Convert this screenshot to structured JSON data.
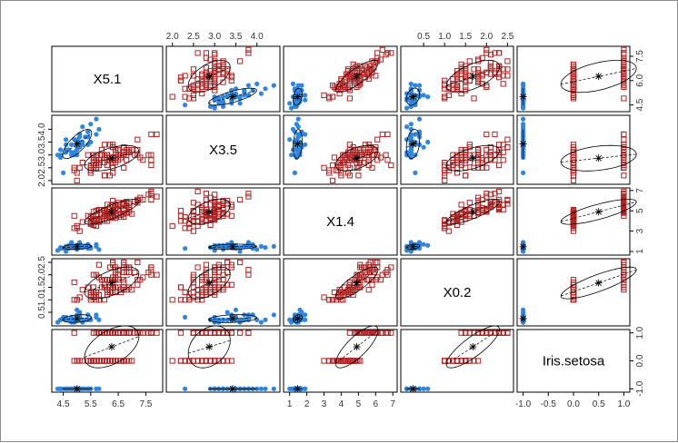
{
  "chart_data": {
    "type": "scatter",
    "variables": [
      "X5.1",
      "X3.5",
      "X1.4",
      "X0.2",
      "Iris.setosa"
    ],
    "ranges": [
      [
        4.3,
        7.9
      ],
      [
        2.0,
        4.4
      ],
      [
        1.0,
        6.9
      ],
      [
        0.1,
        2.5
      ],
      [
        -1,
        1
      ]
    ],
    "ticks": [
      [
        "4.5",
        "5.5",
        "6.5",
        "7.5"
      ],
      [
        "2.0",
        "2.5",
        "3.0",
        "3.5",
        "4.0"
      ],
      [
        "1",
        "2",
        "3",
        "4",
        "5",
        "6",
        "7"
      ],
      [
        "0.5",
        "1.0",
        "1.5",
        "2.0",
        "2.5"
      ],
      [
        "-1.0",
        "-0.5",
        "0.0",
        "0.5",
        "1.0"
      ]
    ],
    "tick_values": [
      [
        4.5,
        5.5,
        6.5,
        7.5
      ],
      [
        2.0,
        2.5,
        3.0,
        3.5,
        4.0
      ],
      [
        1,
        2,
        3,
        4,
        5,
        6,
        7
      ],
      [
        0.5,
        1.0,
        1.5,
        2.0,
        2.5
      ],
      [
        -1.0,
        -0.5,
        0.0,
        0.5,
        1.0
      ]
    ],
    "left_tick_values": [
      [
        4.5,
        6.0,
        7.5
      ],
      [
        2.0,
        2.5,
        3.0,
        3.5,
        4.0
      ],
      [
        1,
        3,
        5,
        7
      ],
      [
        0.5,
        1.0,
        1.5,
        2.0,
        2.5
      ],
      [
        -1.0,
        0.0,
        1.0
      ]
    ],
    "left_ticks": [
      [
        "4.5",
        "6.0",
        "7.5"
      ],
      [
        "2.0",
        "2.5",
        "3.0",
        "3.5",
        "4.0"
      ],
      [
        "1",
        "3",
        "5",
        "7"
      ],
      [
        "0.5",
        "1.0",
        "1.5",
        "2.0",
        "2.5"
      ],
      [
        "-1.0",
        "0.0",
        "1.0"
      ]
    ],
    "colors": {
      "setosa": "#2e86de",
      "other": "#b22222"
    },
    "markers": {
      "setosa": "filled-circle",
      "other": "open-square"
    },
    "series": [
      {
        "group": "setosa",
        "points": [
          [
            4.9,
            3.0,
            1.4,
            0.2,
            -1
          ],
          [
            4.7,
            3.2,
            1.3,
            0.2,
            -1
          ],
          [
            4.6,
            3.1,
            1.5,
            0.2,
            -1
          ],
          [
            5.0,
            3.6,
            1.4,
            0.2,
            -1
          ],
          [
            5.4,
            3.9,
            1.7,
            0.4,
            -1
          ],
          [
            4.6,
            3.4,
            1.4,
            0.3,
            -1
          ],
          [
            5.0,
            3.4,
            1.5,
            0.2,
            -1
          ],
          [
            4.4,
            2.9,
            1.4,
            0.2,
            -1
          ],
          [
            4.9,
            3.1,
            1.5,
            0.1,
            -1
          ],
          [
            5.4,
            3.7,
            1.5,
            0.2,
            -1
          ],
          [
            4.8,
            3.4,
            1.6,
            0.2,
            -1
          ],
          [
            4.8,
            3.0,
            1.4,
            0.1,
            -1
          ],
          [
            4.3,
            3.0,
            1.1,
            0.1,
            -1
          ],
          [
            5.8,
            4.0,
            1.2,
            0.2,
            -1
          ],
          [
            5.7,
            4.4,
            1.5,
            0.4,
            -1
          ],
          [
            5.4,
            3.9,
            1.3,
            0.4,
            -1
          ],
          [
            5.1,
            3.5,
            1.4,
            0.3,
            -1
          ],
          [
            5.7,
            3.8,
            1.7,
            0.3,
            -1
          ],
          [
            5.1,
            3.8,
            1.5,
            0.3,
            -1
          ],
          [
            5.4,
            3.4,
            1.7,
            0.2,
            -1
          ],
          [
            5.1,
            3.7,
            1.5,
            0.4,
            -1
          ],
          [
            4.6,
            3.6,
            1.0,
            0.2,
            -1
          ],
          [
            5.1,
            3.3,
            1.7,
            0.5,
            -1
          ],
          [
            4.8,
            3.4,
            1.9,
            0.2,
            -1
          ],
          [
            5.0,
            3.0,
            1.6,
            0.2,
            -1
          ],
          [
            5.0,
            3.4,
            1.6,
            0.4,
            -1
          ],
          [
            5.2,
            3.5,
            1.5,
            0.2,
            -1
          ],
          [
            5.2,
            3.4,
            1.4,
            0.2,
            -1
          ],
          [
            4.7,
            3.2,
            1.6,
            0.2,
            -1
          ],
          [
            4.8,
            3.1,
            1.6,
            0.2,
            -1
          ],
          [
            5.4,
            3.4,
            1.5,
            0.4,
            -1
          ],
          [
            5.2,
            4.1,
            1.5,
            0.1,
            -1
          ],
          [
            5.5,
            4.2,
            1.4,
            0.2,
            -1
          ],
          [
            4.9,
            3.1,
            1.5,
            0.2,
            -1
          ],
          [
            5.0,
            3.2,
            1.2,
            0.2,
            -1
          ],
          [
            5.5,
            3.5,
            1.3,
            0.2,
            -1
          ],
          [
            4.9,
            3.6,
            1.4,
            0.1,
            -1
          ],
          [
            4.4,
            3.0,
            1.3,
            0.2,
            -1
          ],
          [
            5.1,
            3.4,
            1.5,
            0.2,
            -1
          ],
          [
            5.0,
            3.5,
            1.3,
            0.3,
            -1
          ],
          [
            4.5,
            2.3,
            1.3,
            0.3,
            -1
          ],
          [
            4.4,
            3.2,
            1.3,
            0.2,
            -1
          ],
          [
            5.0,
            3.5,
            1.6,
            0.6,
            -1
          ],
          [
            5.1,
            3.8,
            1.9,
            0.4,
            -1
          ],
          [
            4.8,
            3.0,
            1.4,
            0.3,
            -1
          ],
          [
            5.1,
            3.8,
            1.6,
            0.2,
            -1
          ],
          [
            4.6,
            3.2,
            1.4,
            0.2,
            -1
          ],
          [
            5.3,
            3.7,
            1.5,
            0.2,
            -1
          ],
          [
            5.0,
            3.3,
            1.4,
            0.2,
            -1
          ]
        ]
      },
      {
        "group": "other",
        "points": [
          [
            7.0,
            3.2,
            4.7,
            1.4,
            0
          ],
          [
            6.4,
            3.2,
            4.5,
            1.5,
            0
          ],
          [
            6.9,
            3.1,
            4.9,
            1.5,
            0
          ],
          [
            5.5,
            2.3,
            4.0,
            1.3,
            0
          ],
          [
            6.5,
            2.8,
            4.6,
            1.5,
            0
          ],
          [
            5.7,
            2.8,
            4.5,
            1.3,
            0
          ],
          [
            6.3,
            3.3,
            4.7,
            1.6,
            0
          ],
          [
            4.9,
            2.4,
            3.3,
            1.0,
            0
          ],
          [
            6.6,
            2.9,
            4.6,
            1.3,
            0
          ],
          [
            5.2,
            2.7,
            3.9,
            1.4,
            0
          ],
          [
            5.0,
            2.0,
            3.5,
            1.0,
            0
          ],
          [
            5.9,
            3.0,
            4.2,
            1.5,
            0
          ],
          [
            6.0,
            2.2,
            4.0,
            1.0,
            0
          ],
          [
            6.1,
            2.9,
            4.7,
            1.4,
            0
          ],
          [
            5.6,
            2.9,
            3.6,
            1.3,
            0
          ],
          [
            6.7,
            3.1,
            4.4,
            1.4,
            0
          ],
          [
            5.6,
            3.0,
            4.5,
            1.5,
            0
          ],
          [
            5.8,
            2.7,
            4.1,
            1.0,
            0
          ],
          [
            6.2,
            2.2,
            4.5,
            1.5,
            0
          ],
          [
            5.6,
            2.5,
            3.9,
            1.1,
            0
          ],
          [
            5.9,
            3.2,
            4.8,
            1.8,
            0
          ],
          [
            6.1,
            2.8,
            4.0,
            1.3,
            0
          ],
          [
            6.3,
            2.5,
            4.9,
            1.5,
            0
          ],
          [
            6.1,
            2.8,
            4.7,
            1.2,
            0
          ],
          [
            6.4,
            2.9,
            4.3,
            1.3,
            0
          ],
          [
            6.6,
            3.0,
            4.4,
            1.4,
            0
          ],
          [
            6.8,
            2.8,
            4.8,
            1.4,
            0
          ],
          [
            6.7,
            3.0,
            5.0,
            1.7,
            0
          ],
          [
            6.0,
            2.9,
            4.5,
            1.5,
            0
          ],
          [
            5.7,
            2.6,
            3.5,
            1.0,
            0
          ],
          [
            5.5,
            2.4,
            3.8,
            1.1,
            0
          ],
          [
            5.5,
            2.4,
            3.7,
            1.0,
            0
          ],
          [
            5.8,
            2.7,
            3.9,
            1.2,
            0
          ],
          [
            6.0,
            2.7,
            5.1,
            1.6,
            0
          ],
          [
            5.4,
            3.0,
            4.5,
            1.5,
            0
          ],
          [
            6.0,
            3.4,
            4.5,
            1.6,
            0
          ],
          [
            6.7,
            3.1,
            4.7,
            1.5,
            0
          ],
          [
            6.3,
            2.3,
            4.4,
            1.3,
            0
          ],
          [
            5.6,
            3.0,
            4.1,
            1.3,
            0
          ],
          [
            5.5,
            2.5,
            4.0,
            1.3,
            0
          ],
          [
            5.5,
            2.6,
            4.4,
            1.2,
            0
          ],
          [
            6.1,
            3.0,
            4.6,
            1.4,
            0
          ],
          [
            5.8,
            2.6,
            4.0,
            1.2,
            0
          ],
          [
            5.0,
            2.3,
            3.3,
            1.0,
            0
          ],
          [
            5.6,
            2.7,
            4.2,
            1.3,
            0
          ],
          [
            5.7,
            3.0,
            4.2,
            1.2,
            0
          ],
          [
            5.7,
            2.9,
            4.2,
            1.3,
            0
          ],
          [
            6.2,
            2.9,
            4.3,
            1.3,
            0
          ],
          [
            5.1,
            2.5,
            3.0,
            1.1,
            0
          ],
          [
            5.7,
            2.8,
            4.1,
            1.3,
            0
          ],
          [
            6.3,
            3.3,
            6.0,
            2.5,
            1
          ],
          [
            5.8,
            2.7,
            5.1,
            1.9,
            1
          ],
          [
            7.1,
            3.0,
            5.9,
            2.1,
            1
          ],
          [
            6.3,
            2.9,
            5.6,
            1.8,
            1
          ],
          [
            6.5,
            3.0,
            5.8,
            2.2,
            1
          ],
          [
            7.6,
            3.0,
            6.6,
            2.1,
            1
          ],
          [
            4.9,
            2.5,
            4.5,
            1.7,
            1
          ],
          [
            7.3,
            2.9,
            6.3,
            1.8,
            1
          ],
          [
            6.7,
            2.5,
            5.8,
            1.8,
            1
          ],
          [
            7.2,
            3.6,
            6.1,
            2.5,
            1
          ],
          [
            6.5,
            3.2,
            5.1,
            2.0,
            1
          ],
          [
            6.4,
            2.7,
            5.3,
            1.9,
            1
          ],
          [
            6.8,
            3.0,
            5.5,
            2.1,
            1
          ],
          [
            5.7,
            2.5,
            5.0,
            2.0,
            1
          ],
          [
            5.8,
            2.8,
            5.1,
            2.4,
            1
          ],
          [
            6.4,
            3.2,
            5.3,
            2.3,
            1
          ],
          [
            6.5,
            3.0,
            5.5,
            1.8,
            1
          ],
          [
            7.7,
            3.8,
            6.7,
            2.2,
            1
          ],
          [
            7.7,
            2.6,
            6.9,
            2.3,
            1
          ],
          [
            6.0,
            2.2,
            5.0,
            1.5,
            1
          ],
          [
            6.9,
            3.2,
            5.7,
            2.3,
            1
          ],
          [
            5.6,
            2.8,
            4.9,
            2.0,
            1
          ],
          [
            7.7,
            2.8,
            6.7,
            2.0,
            1
          ],
          [
            6.3,
            2.7,
            4.9,
            1.8,
            1
          ],
          [
            6.7,
            3.3,
            5.7,
            2.1,
            1
          ],
          [
            7.2,
            3.2,
            6.0,
            1.8,
            1
          ],
          [
            6.2,
            2.8,
            4.8,
            1.8,
            1
          ],
          [
            6.1,
            3.0,
            4.9,
            1.8,
            1
          ],
          [
            6.4,
            2.8,
            5.6,
            2.1,
            1
          ],
          [
            7.2,
            3.0,
            5.8,
            1.6,
            1
          ],
          [
            7.4,
            2.8,
            6.1,
            1.9,
            1
          ],
          [
            7.9,
            3.8,
            6.4,
            2.0,
            1
          ],
          [
            6.4,
            2.8,
            5.6,
            2.2,
            1
          ],
          [
            6.3,
            2.8,
            5.1,
            1.5,
            1
          ],
          [
            6.1,
            2.6,
            5.6,
            1.4,
            1
          ],
          [
            7.7,
            3.0,
            6.1,
            2.3,
            1
          ],
          [
            6.3,
            3.4,
            5.6,
            2.4,
            1
          ],
          [
            6.4,
            3.1,
            5.5,
            1.8,
            1
          ],
          [
            6.0,
            3.0,
            4.8,
            1.8,
            1
          ],
          [
            6.9,
            3.1,
            5.4,
            2.1,
            1
          ],
          [
            6.7,
            3.1,
            5.6,
            2.4,
            1
          ],
          [
            6.9,
            3.1,
            5.1,
            2.3,
            1
          ],
          [
            5.8,
            2.7,
            5.1,
            1.9,
            1
          ],
          [
            6.8,
            3.2,
            5.9,
            2.3,
            1
          ],
          [
            6.7,
            3.3,
            5.7,
            2.5,
            1
          ],
          [
            6.7,
            3.0,
            5.2,
            2.3,
            1
          ],
          [
            6.3,
            2.5,
            5.0,
            1.9,
            1
          ],
          [
            6.5,
            3.0,
            5.2,
            2.0,
            1
          ],
          [
            6.2,
            3.4,
            5.4,
            2.3,
            1
          ],
          [
            5.9,
            3.0,
            5.1,
            1.8,
            1
          ]
        ]
      }
    ]
  }
}
